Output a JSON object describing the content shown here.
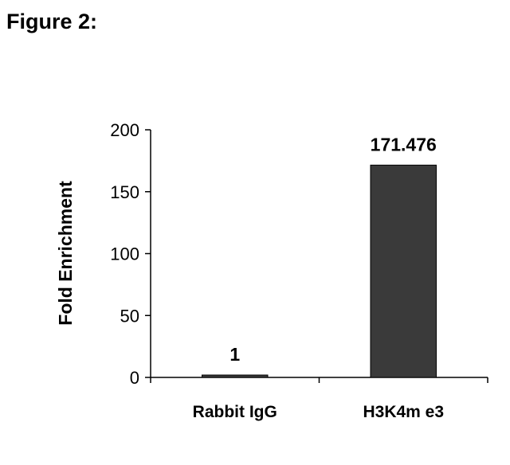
{
  "figure_label": "Figure 2:",
  "chart_data": {
    "type": "bar",
    "title": "",
    "xlabel": "",
    "ylabel": "Fold Enrichment",
    "categories": [
      "Rabbit IgG",
      "H3K4m e3"
    ],
    "values": [
      1,
      171.476
    ],
    "data_labels": [
      "1",
      "171.476"
    ],
    "ylim": [
      0,
      200
    ],
    "yticks": [
      0,
      50,
      100,
      150,
      200
    ],
    "ytick_labels": [
      "0",
      "50",
      "100",
      "150",
      "200"
    ],
    "grid": false,
    "legend": "none",
    "bar_color": "#3a3a3a"
  }
}
